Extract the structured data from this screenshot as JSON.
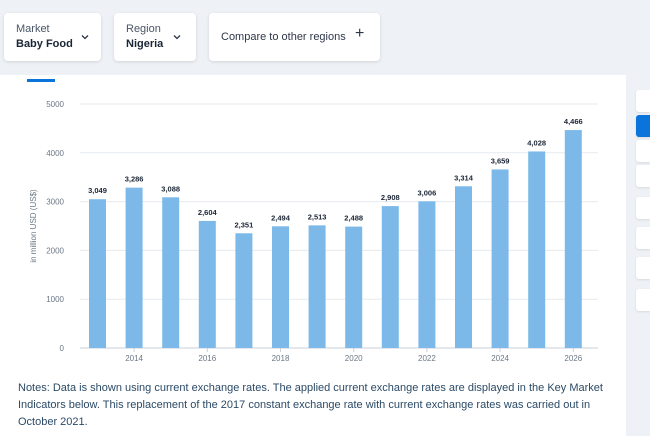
{
  "filters": {
    "market": {
      "caption": "Market",
      "value": "Baby Food"
    },
    "region": {
      "caption": "Region",
      "value": "Nigeria"
    },
    "compare": {
      "label": "Compare to other regions"
    }
  },
  "chart_data": {
    "type": "bar",
    "categories": [
      "2013",
      "2014",
      "2015",
      "2016",
      "2017",
      "2018",
      "2019",
      "2020",
      "2021",
      "2022",
      "2023",
      "2024",
      "2025",
      "2026"
    ],
    "values": [
      3049,
      3286,
      3088,
      2604,
      2351,
      2494,
      2513,
      2488,
      2908,
      3006,
      3314,
      3659,
      4028,
      4466
    ],
    "value_labels": [
      "3,049",
      "3,286",
      "3,088",
      "2,604",
      "2,351",
      "2,494",
      "2,513",
      "2,488",
      "2,908",
      "3,006",
      "3,314",
      "3,659",
      "4,028",
      "4,466"
    ],
    "x_tick_labels": [
      "2014",
      "2016",
      "2018",
      "2020",
      "2022",
      "2024",
      "2026"
    ],
    "y_ticks": [
      0,
      1000,
      2000,
      3000,
      4000,
      5000
    ],
    "ylabel": "in million USD (US$)",
    "ylim": [
      0,
      5000
    ],
    "bar_color": "#7db9e8",
    "grid": true
  },
  "notes": "Notes: Data is shown using current exchange rates. The applied current exchange rates are displayed in the Key Market Indicators below. This replacement of the 2017 constant exchange rate with current exchange rates was carried out in October 2021."
}
